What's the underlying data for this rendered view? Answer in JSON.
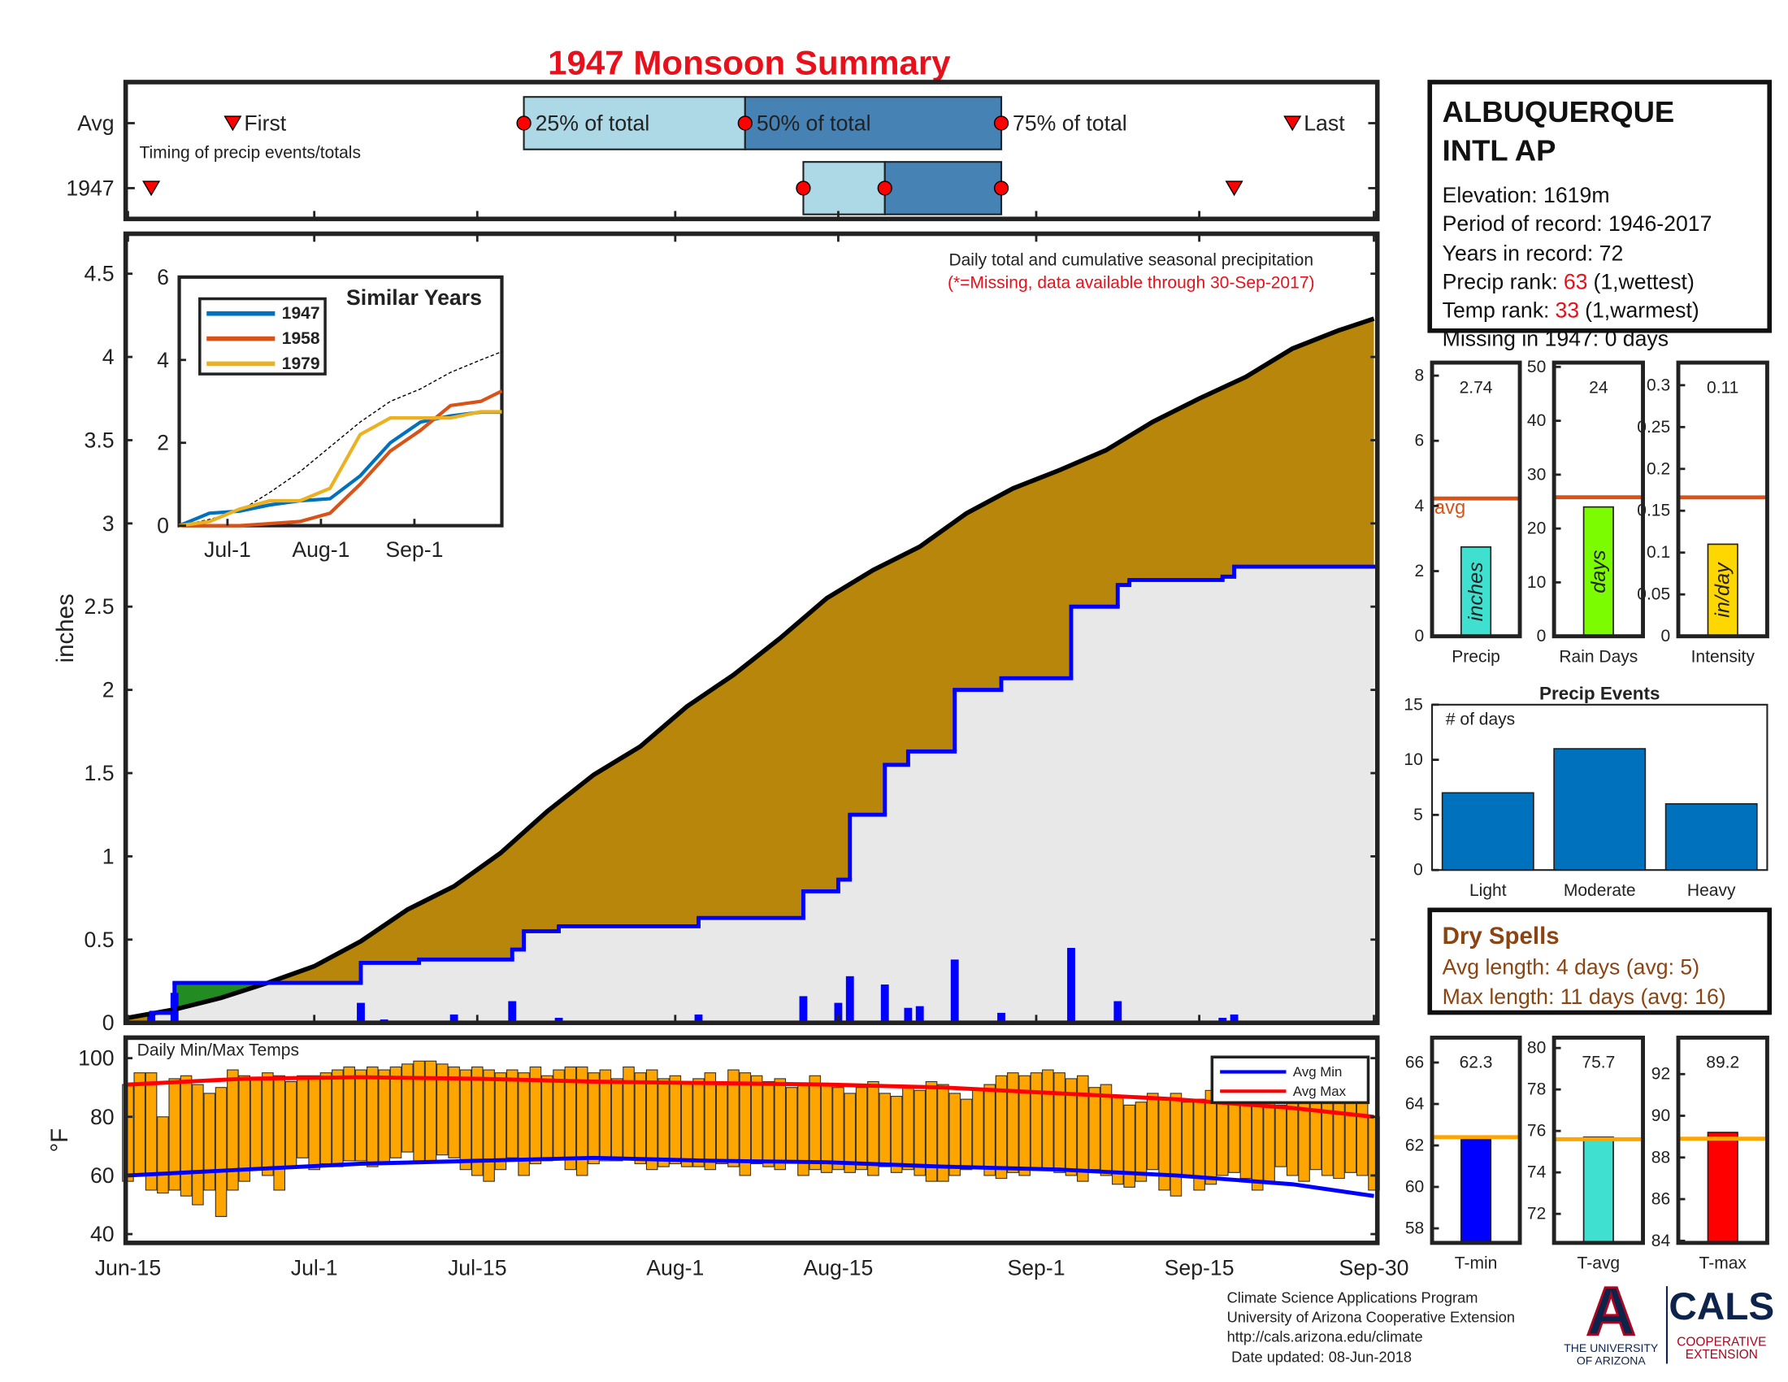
{
  "chart_data": [
    {
      "type": "timing",
      "title": "1947 Monsoon Summary",
      "note": "Timing of precip events/totals",
      "xlim": [
        0,
        107
      ],
      "labels": {
        "first": "First",
        "p25": "25% of total",
        "p50": "50% of total",
        "p75": "75% of total",
        "last": "Last"
      },
      "colors": {
        "early": "#add8e6",
        "late": "#4682b4",
        "marker": "#ff0000"
      },
      "rows": [
        {
          "name": "Avg",
          "first": 9,
          "p25": 34,
          "p50": 53,
          "p75": 75,
          "last": 100
        },
        {
          "name": "1947",
          "first": 2,
          "p25": 58,
          "p50": 65,
          "p75": 75,
          "last": 95
        }
      ]
    },
    {
      "type": "precip",
      "note": "Daily total and cumulative seasonal precipitation",
      "note2": "(*=Missing, data available through 30-Sep-2017)",
      "ylabel": "inches",
      "xlim": [
        0,
        107
      ],
      "ylim": [
        0,
        4.74
      ],
      "yticks": [
        0,
        0.5,
        1,
        1.5,
        2,
        2.5,
        3,
        3.5,
        4,
        4.5
      ],
      "xticks": [
        {
          "value": 0,
          "label": "Jun-15"
        },
        {
          "value": 16,
          "label": "Jul-1"
        },
        {
          "value": 30,
          "label": "Jul-15"
        },
        {
          "value": 47,
          "label": "Aug-1"
        },
        {
          "value": 61,
          "label": "Aug-15"
        },
        {
          "value": 78,
          "label": "Sep-1"
        },
        {
          "value": 92,
          "label": "Sep-15"
        },
        {
          "value": 107,
          "label": "Sep-30"
        }
      ],
      "average": {
        "color": "#b8860b",
        "x": [
          0,
          4,
          8,
          12,
          16,
          20,
          24,
          28,
          32,
          36,
          40,
          44,
          48,
          52,
          56,
          60,
          64,
          68,
          72,
          76,
          80,
          84,
          88,
          92,
          96,
          100,
          104,
          107
        ],
        "values": [
          0.03,
          0.08,
          0.15,
          0.24,
          0.34,
          0.49,
          0.68,
          0.82,
          1.02,
          1.27,
          1.49,
          1.66,
          1.9,
          2.09,
          2.31,
          2.55,
          2.72,
          2.86,
          3.06,
          3.21,
          3.32,
          3.44,
          3.61,
          3.75,
          3.88,
          4.05,
          4.16,
          4.23
        ]
      },
      "year": {
        "color": "#0000ff",
        "fill": "#e8e8e8",
        "above_color": "#228b22",
        "x": [
          0,
          2,
          4,
          20,
          25,
          33,
          34,
          37,
          49,
          58,
          61,
          62,
          65,
          67,
          71,
          75,
          81,
          85,
          86,
          94,
          95
        ],
        "values": [
          0,
          0.06,
          0.24,
          0.36,
          0.38,
          0.44,
          0.55,
          0.58,
          0.63,
          0.79,
          0.86,
          1.25,
          1.55,
          1.63,
          2.0,
          2.07,
          2.5,
          2.63,
          2.66,
          2.68,
          2.74
        ]
      },
      "daily": {
        "color": "#0000ff",
        "x": [
          2,
          4,
          20,
          22,
          28,
          33,
          36,
          37,
          49,
          58,
          61,
          62,
          65,
          67,
          68,
          71,
          75,
          81,
          85,
          86,
          94,
          95
        ],
        "values": [
          0.06,
          0.18,
          0.12,
          0.02,
          0.05,
          0.13,
          0.01,
          0.03,
          0.05,
          0.16,
          0.12,
          0.28,
          0.23,
          0.09,
          0.1,
          0.38,
          0.06,
          0.45,
          0.13,
          0.01,
          0.03,
          0.05
        ]
      }
    },
    {
      "type": "line",
      "title": "Similar Years",
      "xlim": [
        0,
        107
      ],
      "ylim": [
        0,
        6
      ],
      "yticks": [
        0,
        2,
        4,
        6
      ],
      "xticks": [
        {
          "value": 16,
          "label": "Jul-1"
        },
        {
          "value": 47,
          "label": "Aug-1"
        },
        {
          "value": 78,
          "label": "Sep-1"
        }
      ],
      "x": [
        0,
        10,
        20,
        30,
        40,
        50,
        60,
        70,
        80,
        90,
        100,
        107
      ],
      "average_values": [
        0,
        0.15,
        0.35,
        0.8,
        1.3,
        1.9,
        2.5,
        3.0,
        3.3,
        3.7,
        4.0,
        4.2
      ],
      "series": [
        {
          "name": "1947",
          "color": "#0072bd",
          "values": [
            0,
            0.3,
            0.35,
            0.5,
            0.6,
            0.65,
            1.2,
            2.0,
            2.5,
            2.65,
            2.74,
            2.74
          ]
        },
        {
          "name": "1958",
          "color": "#d95319",
          "values": [
            0,
            0,
            0,
            0.05,
            0.1,
            0.3,
            1.0,
            1.8,
            2.3,
            2.9,
            3.0,
            3.25
          ]
        },
        {
          "name": "1979",
          "color": "#edb120",
          "values": [
            0,
            0.1,
            0.4,
            0.6,
            0.6,
            0.9,
            2.2,
            2.6,
            2.6,
            2.6,
            2.75,
            2.75
          ]
        }
      ]
    },
    {
      "type": "temperature",
      "note": "Daily Min/Max Temps",
      "ylabel": "°F",
      "xlim": [
        0,
        107
      ],
      "ylim": [
        37,
        107
      ],
      "yticks": [
        40,
        60,
        80,
        100
      ],
      "bar_color": "#ffa500",
      "days": [
        0,
        1,
        2,
        3,
        4,
        5,
        6,
        7,
        8,
        9,
        10,
        11,
        12,
        13,
        14,
        15,
        16,
        17,
        18,
        19,
        20,
        21,
        22,
        23,
        24,
        25,
        26,
        27,
        28,
        29,
        30,
        31,
        32,
        33,
        34,
        35,
        36,
        37,
        38,
        39,
        40,
        41,
        42,
        43,
        44,
        45,
        46,
        47,
        48,
        49,
        50,
        51,
        52,
        53,
        54,
        55,
        56,
        57,
        58,
        59,
        60,
        61,
        62,
        63,
        64,
        65,
        66,
        67,
        68,
        69,
        70,
        71,
        72,
        73,
        74,
        75,
        76,
        77,
        78,
        79,
        80,
        81,
        82,
        83,
        84,
        85,
        86,
        87,
        88,
        89,
        90,
        91,
        92,
        93,
        94,
        95,
        96,
        97,
        98,
        99,
        100,
        101,
        102,
        103,
        104,
        105,
        106,
        107
      ],
      "daily_max": [
        91,
        95,
        95,
        80,
        93,
        94,
        91,
        88,
        90,
        96,
        94,
        93,
        95,
        94,
        92,
        94,
        94,
        95,
        96,
        97,
        96,
        97,
        96,
        97,
        98,
        99,
        99,
        98,
        97,
        96,
        97,
        96,
        95,
        96,
        95,
        97,
        94,
        96,
        97,
        97,
        95,
        96,
        93,
        97,
        95,
        96,
        93,
        94,
        92,
        93,
        95,
        92,
        96,
        95,
        94,
        92,
        93,
        90,
        91,
        94,
        91,
        90,
        88,
        90,
        92,
        88,
        87,
        90,
        89,
        92,
        91,
        88,
        86,
        89,
        91,
        94,
        95,
        94,
        95,
        96,
        95,
        93,
        94,
        90,
        91,
        87,
        84,
        85,
        88,
        86,
        88,
        85,
        86,
        89,
        87,
        85,
        88,
        87,
        89,
        84,
        86,
        88,
        85,
        89,
        87,
        86,
        85,
        80
      ],
      "daily_min": [
        58,
        60,
        55,
        54,
        55,
        53,
        50,
        55,
        46,
        55,
        58,
        62,
        60,
        55,
        63,
        66,
        62,
        64,
        63,
        65,
        65,
        63,
        64,
        66,
        68,
        64,
        65,
        67,
        66,
        62,
        60,
        58,
        62,
        66,
        60,
        64,
        65,
        66,
        62,
        60,
        64,
        65,
        65,
        66,
        64,
        62,
        63,
        64,
        63,
        63,
        62,
        64,
        63,
        60,
        64,
        63,
        62,
        65,
        60,
        62,
        61,
        62,
        61,
        62,
        60,
        63,
        61,
        62,
        60,
        58,
        58,
        60,
        62,
        63,
        60,
        59,
        61,
        60,
        62,
        62,
        61,
        60,
        58,
        62,
        60,
        57,
        56,
        58,
        62,
        55,
        53,
        60,
        55,
        57,
        60,
        61,
        59,
        55,
        58,
        63,
        60,
        58,
        62,
        60,
        59,
        61,
        60,
        55
      ],
      "x": [
        0,
        10,
        20,
        30,
        40,
        50,
        60,
        70,
        80,
        90,
        100,
        107
      ],
      "series": [
        {
          "name": "Avg Min",
          "color": "#0000ff",
          "values": [
            60,
            62,
            64,
            65,
            66,
            65,
            64.5,
            63,
            62,
            60,
            57,
            53
          ]
        },
        {
          "name": "Avg Max",
          "color": "#ff0000",
          "values": [
            91,
            93,
            93.5,
            93,
            92,
            91.5,
            91,
            90,
            88,
            86,
            83,
            80
          ]
        }
      ]
    },
    {
      "type": "single_bar",
      "label": "Precip",
      "value": 2.74,
      "avg": 4.23,
      "avg_label": "avg",
      "unit": "inches",
      "color": "#40e0d0",
      "avg_color": "#d95319",
      "ylim": [
        0,
        8.4
      ],
      "yticks": [
        0,
        2,
        4,
        6,
        8
      ]
    },
    {
      "type": "single_bar",
      "label": "Rain Days",
      "value": 24,
      "avg": 25.8,
      "unit": "days",
      "color": "#7cfc00",
      "avg_color": "#d95319",
      "ylim": [
        0,
        50.8
      ],
      "yticks": [
        0,
        10,
        20,
        30,
        40,
        50
      ]
    },
    {
      "type": "single_bar",
      "label": "Intensity",
      "value": 0.11,
      "avg": 0.166,
      "unit": "in/day",
      "color": "#ffd700",
      "avg_color": "#d95319",
      "ylim": [
        0,
        0.327
      ],
      "yticks": [
        0,
        0.05,
        0.1,
        0.15,
        0.2,
        0.25,
        0.3
      ]
    },
    {
      "type": "bar",
      "title": "Precip Events",
      "note": "# of days",
      "categories": [
        "Light",
        "Moderate",
        "Heavy"
      ],
      "values": [
        7,
        11,
        6
      ],
      "color": "#0072bd",
      "ylim": [
        0,
        15
      ],
      "yticks": [
        0,
        5,
        10,
        15
      ]
    },
    {
      "type": "single_bar",
      "label": "T-min",
      "value": 62.3,
      "avg": 62.4,
      "color": "#0000ff",
      "avg_color": "#ffa500",
      "ylim": [
        57.3,
        67.2
      ],
      "yticks": [
        58,
        60,
        62,
        64,
        66
      ]
    },
    {
      "type": "single_bar",
      "label": "T-avg",
      "value": 75.7,
      "avg": 75.6,
      "color": "#40e0d0",
      "avg_color": "#ffa500",
      "ylim": [
        70.6,
        80.5
      ],
      "yticks": [
        72,
        74,
        76,
        78,
        80
      ]
    },
    {
      "type": "single_bar",
      "label": "T-max",
      "value": 89.2,
      "avg": 88.9,
      "color": "#ff0000",
      "avg_color": "#ffa500",
      "ylim": [
        83.9,
        93.75
      ],
      "yticks": [
        84,
        86,
        88,
        90,
        92
      ]
    }
  ],
  "station": {
    "title": [
      "ALBUQUERQUE",
      "INTL AP"
    ],
    "lines": [
      "Elevation: 1619m",
      "Period of record: 1946-2017",
      "Years in record: 72"
    ],
    "precip_rank": {
      "label": "Precip rank:",
      "value": 63,
      "suffix": "(1,wettest)"
    },
    "temp_rank": {
      "label": "Temp rank:",
      "value": 33,
      "suffix": "(1,warmest)"
    },
    "missing": "Missing in 1947: 0 days"
  },
  "dry_spells": {
    "title": "Dry Spells",
    "lines": [
      "Avg length: 4 days (avg: 5)",
      "Max length: 11 days (avg: 16)"
    ]
  },
  "footer": {
    "lines": [
      "Climate Science Applications Program",
      "University of Arizona Cooperative Extension",
      "http://cals.arizona.edu/climate",
      "Date updated: 08-Jun-2018"
    ],
    "logo_letter": "A",
    "university": [
      "THE UNIVERSITY",
      "OF ARIZONA"
    ],
    "cals": "CALS",
    "extension": [
      "COOPERATIVE",
      "EXTENSION"
    ]
  }
}
